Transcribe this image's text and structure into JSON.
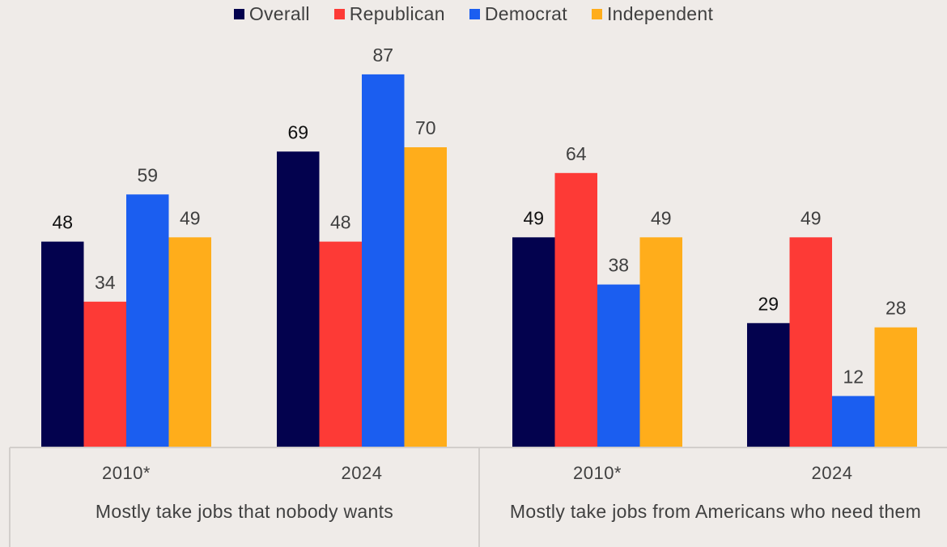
{
  "legend": [
    {
      "name": "Overall",
      "color": "#03024e"
    },
    {
      "name": "Republican",
      "color": "#fd3a36"
    },
    {
      "name": "Democrat",
      "color": "#1b5ef0"
    },
    {
      "name": "Independent",
      "color": "#ffad1b"
    }
  ],
  "chart_data": {
    "type": "bar",
    "groups": [
      {
        "label": "Mostly take jobs that nobody wants",
        "years": [
          "2010*",
          "2024"
        ]
      },
      {
        "label": "Mostly take jobs from Americans who need them",
        "years": [
          "2010*",
          "2024"
        ]
      }
    ],
    "categories": [
      "2010*",
      "2024",
      "2010*",
      "2024"
    ],
    "series": [
      {
        "name": "Overall",
        "color": "#03024e",
        "values": [
          48,
          69,
          49,
          29
        ]
      },
      {
        "name": "Republican",
        "color": "#fd3a36",
        "values": [
          34,
          48,
          64,
          49
        ]
      },
      {
        "name": "Democrat",
        "color": "#1b5ef0",
        "values": [
          59,
          87,
          38,
          12
        ]
      },
      {
        "name": "Independent",
        "color": "#ffad1b",
        "values": [
          49,
          70,
          49,
          28
        ]
      }
    ],
    "ylim": [
      0,
      100
    ],
    "grid": false,
    "legend_position": "top"
  }
}
